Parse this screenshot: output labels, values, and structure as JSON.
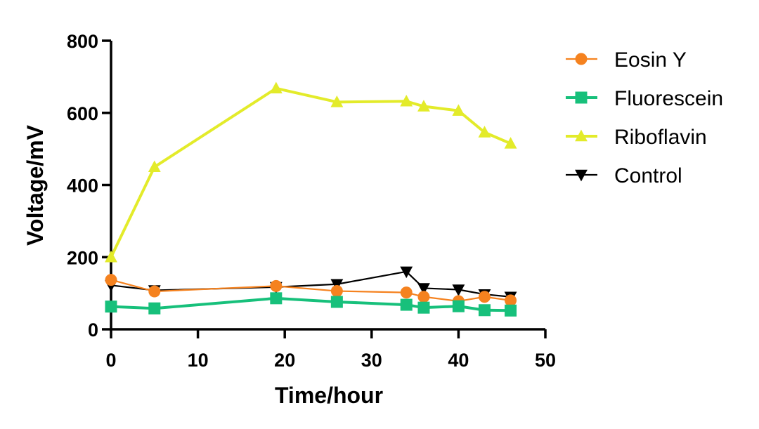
{
  "chart_data": {
    "type": "line",
    "title": "",
    "xlabel": "Time/hour",
    "ylabel": "Voltage/mV",
    "xlim": [
      0,
      50
    ],
    "ylim": [
      0,
      800
    ],
    "xticks": [
      0,
      10,
      20,
      30,
      40,
      50
    ],
    "yticks": [
      0,
      200,
      400,
      600,
      800
    ],
    "grid": false,
    "legend_position": "top-right",
    "series": [
      {
        "name": "Eosin Y",
        "color": "#F5821F",
        "marker": "circle",
        "x": [
          0,
          5,
          19,
          26,
          34,
          36,
          40,
          43,
          46
        ],
        "y": [
          137,
          105,
          120,
          106,
          102,
          90,
          78,
          90,
          80
        ]
      },
      {
        "name": "Fluorescein",
        "color": "#17C07B",
        "marker": "square",
        "x": [
          0,
          5,
          19,
          26,
          34,
          36,
          40,
          43,
          46
        ],
        "y": [
          63,
          58,
          86,
          76,
          68,
          60,
          64,
          53,
          52
        ]
      },
      {
        "name": "Riboflavin",
        "color": "#E3EB2A",
        "marker": "triangle-up",
        "x": [
          0,
          5,
          19,
          26,
          34,
          36,
          40,
          43,
          46
        ],
        "y": [
          200,
          450,
          668,
          630,
          632,
          618,
          606,
          546,
          515
        ]
      },
      {
        "name": "Control",
        "color": "#000000",
        "marker": "triangle-down",
        "x": [
          0,
          5,
          19,
          26,
          34,
          36,
          40,
          43,
          46
        ],
        "y": [
          122,
          108,
          117,
          125,
          160,
          114,
          110,
          97,
          90
        ]
      }
    ]
  }
}
